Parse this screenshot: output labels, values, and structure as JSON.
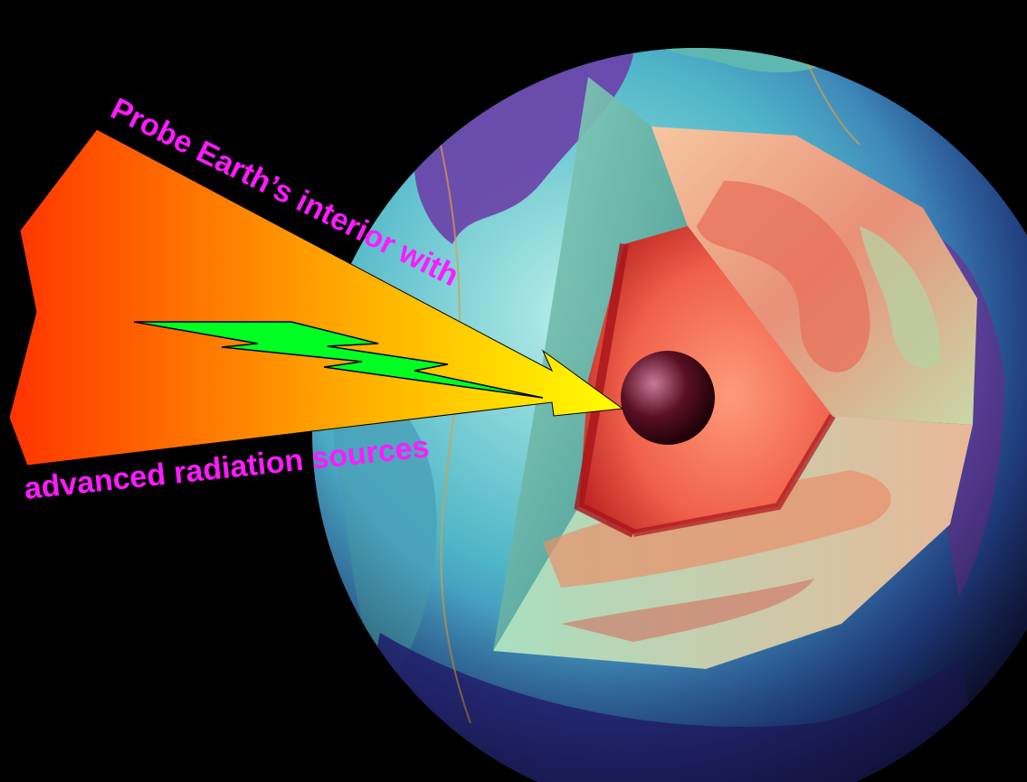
{
  "caption": {
    "line1": "Probe Earth’s interior with",
    "line2": "advanced radiation sources"
  },
  "colors": {
    "background": "#000000",
    "text": "#ff1aff",
    "arrow_start": "#ff3300",
    "arrow_end": "#ffff00",
    "bolt": "#00ff22",
    "ocean": "#7fd6d0",
    "continent": "#6a3fa0",
    "mantle": "#e8a07a",
    "core": "#e23a2a",
    "inner_core": "#3a0a14"
  },
  "icons": {
    "arrow": "radiation-beam-arrow",
    "bolt": "lightning-bolt-icon",
    "globe": "earth-cutaway-globe"
  }
}
